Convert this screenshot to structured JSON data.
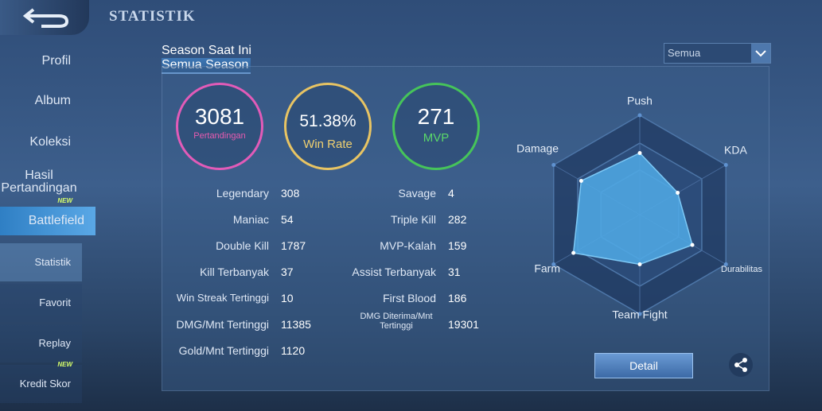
{
  "header": {
    "title": "STATISTIK"
  },
  "sidebar": [
    {
      "label": "Profil"
    },
    {
      "label": "Album"
    },
    {
      "label": "Koleksi"
    },
    {
      "label": "Hasil Pertandingan"
    },
    {
      "label": "Battlefield",
      "badge": "NEW"
    },
    {
      "label": "Statistik"
    },
    {
      "label": "Favorit"
    },
    {
      "label": "Replay"
    },
    {
      "label": "Kredit Skor",
      "badge": "NEW"
    }
  ],
  "tabs": [
    "Season Saat Ini",
    "Semua Season"
  ],
  "filter": "Semua",
  "summary": [
    {
      "value": 3081,
      "label": "Pertandingan"
    },
    {
      "value": "51.38%",
      "label": "Win Rate"
    },
    {
      "value": 271,
      "label": "MVP"
    }
  ],
  "stats_left": [
    [
      "Legendary",
      308
    ],
    [
      "Maniac",
      54
    ],
    [
      "Double Kill",
      1787
    ],
    [
      "Kill Terbanyak",
      37
    ],
    [
      "Win Streak Tertinggi",
      10
    ],
    [
      "DMG/Mnt Tertinggi",
      11385
    ],
    [
      "Gold/Mnt Tertinggi",
      1120
    ]
  ],
  "stats_right": [
    [
      "Savage",
      4
    ],
    [
      "Triple Kill",
      282
    ],
    [
      "MVP-Kalah",
      159
    ],
    [
      "Assist Terbanyak",
      31
    ],
    [
      "First Blood",
      186
    ],
    [
      "DMG Diterima/Mnt Tertinggi",
      19301
    ]
  ],
  "radar": {
    "axes": [
      "Push",
      "KDA",
      "Durabilitas",
      "Team Fight",
      "Farm",
      "Damage"
    ],
    "values": [
      0.62,
      0.44,
      0.61,
      0.5,
      0.77,
      0.68
    ]
  },
  "button": "Detail"
}
